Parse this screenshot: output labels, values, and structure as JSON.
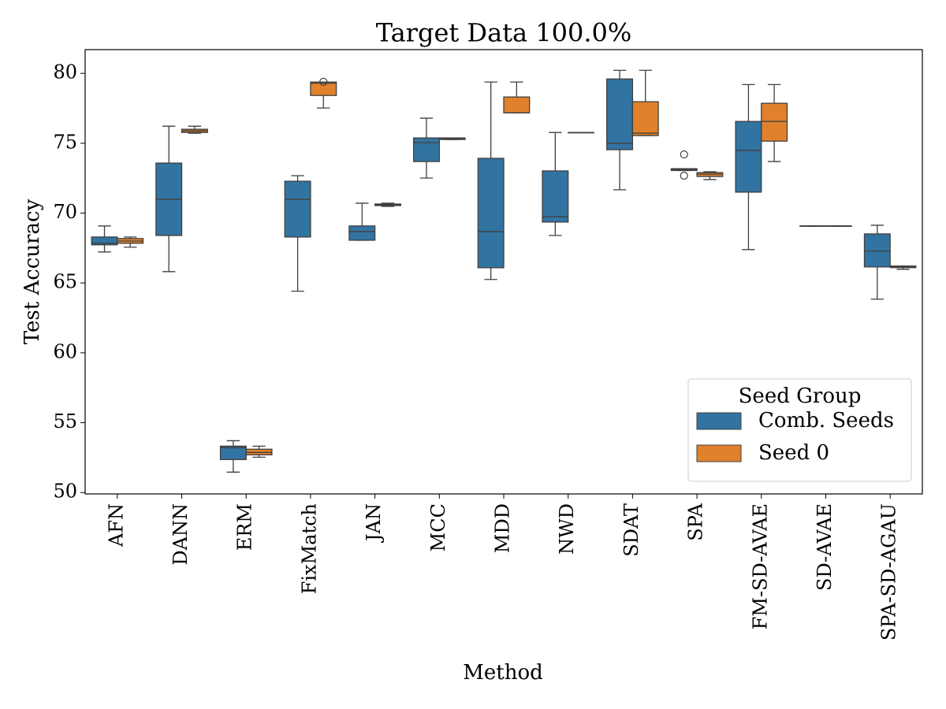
{
  "chart_data": {
    "type": "box",
    "title": "Target Data 100.0%",
    "x_label": "Method",
    "y_label": "Test Accuracy",
    "categories": [
      "AFN",
      "DANN",
      "ERM",
      "FixMatch",
      "JAN",
      "MCC",
      "MDD",
      "NWD",
      "SDAT",
      "SPA",
      "FM-SD-AVAE",
      "SD-AVAE",
      "SPA-SD-AGAU"
    ],
    "ylim": [
      49.9,
      81.7
    ],
    "yticks": [
      50,
      55,
      60,
      65,
      70,
      75,
      80
    ],
    "legend": {
      "title": "Seed Group",
      "loc": "lower right"
    },
    "series": [
      {
        "name": "Comb. Seeds",
        "color": "#3274a1",
        "values": [
          {
            "min": 67.22,
            "q1": 67.73,
            "median": 67.84,
            "q3": 68.29,
            "max": 69.08,
            "outliers": []
          },
          {
            "min": 65.81,
            "q1": 68.4,
            "median": 70.99,
            "q3": 73.58,
            "max": 76.22,
            "outliers": []
          },
          {
            "min": 51.46,
            "q1": 52.36,
            "median": 53.21,
            "q3": 53.32,
            "max": 53.71,
            "outliers": []
          },
          {
            "min": 64.41,
            "q1": 68.29,
            "median": 70.99,
            "q3": 72.28,
            "max": 72.68,
            "outliers": []
          },
          {
            "min": 68.06,
            "q1": 68.06,
            "median": 68.68,
            "q3": 69.08,
            "max": 70.71,
            "outliers": []
          },
          {
            "min": 72.51,
            "q1": 73.69,
            "median": 75.04,
            "q3": 75.38,
            "max": 76.79,
            "outliers": []
          },
          {
            "min": 65.25,
            "q1": 66.09,
            "median": 68.68,
            "q3": 73.92,
            "max": 79.38,
            "outliers": []
          },
          {
            "min": 68.4,
            "q1": 69.36,
            "median": 69.75,
            "q3": 73.02,
            "max": 75.77,
            "outliers": []
          },
          {
            "min": 71.67,
            "q1": 74.54,
            "median": 75.0,
            "q3": 79.6,
            "max": 80.22,
            "outliers": []
          },
          {
            "min": 73.05,
            "q1": 73.05,
            "median": 73.13,
            "q3": 73.18,
            "max": 73.18,
            "outliers": [
              74.2,
              72.68
            ]
          },
          {
            "min": 67.39,
            "q1": 71.5,
            "median": 74.48,
            "q3": 76.56,
            "max": 79.2,
            "outliers": []
          },
          {
            "min": 69.08,
            "q1": 69.08,
            "median": 69.08,
            "q3": 69.08,
            "max": 69.08,
            "outliers": []
          },
          {
            "min": 63.84,
            "q1": 66.15,
            "median": 67.28,
            "q3": 68.51,
            "max": 69.13,
            "outliers": []
          }
        ]
      },
      {
        "name": "Seed 0",
        "color": "#e1812c",
        "values": [
          {
            "min": 67.56,
            "q1": 67.84,
            "median": 68.0,
            "q3": 68.18,
            "max": 68.29,
            "outliers": []
          },
          {
            "min": 75.72,
            "q1": 75.77,
            "median": 75.89,
            "q3": 76.0,
            "max": 76.22,
            "outliers": []
          },
          {
            "min": 52.53,
            "q1": 52.7,
            "median": 52.87,
            "q3": 53.1,
            "max": 53.32,
            "outliers": []
          },
          {
            "min": 77.52,
            "q1": 78.42,
            "median": 79.3,
            "q3": 79.38,
            "max": 79.38,
            "outliers": [
              79.4
            ]
          },
          {
            "min": 70.48,
            "q1": 70.54,
            "median": 70.6,
            "q3": 70.65,
            "max": 70.71,
            "outliers": []
          },
          {
            "min": 75.27,
            "q1": 75.27,
            "median": 75.32,
            "q3": 75.38,
            "max": 75.38,
            "outliers": []
          },
          {
            "min": 77.18,
            "q1": 77.18,
            "median": 77.18,
            "q3": 78.31,
            "max": 79.38,
            "outliers": []
          },
          {
            "min": 75.77,
            "q1": 75.77,
            "median": 75.77,
            "q3": 75.77,
            "max": 75.77,
            "outliers": []
          },
          {
            "min": 75.55,
            "q1": 75.55,
            "median": 75.72,
            "q3": 77.97,
            "max": 80.22,
            "outliers": []
          },
          {
            "min": 72.4,
            "q1": 72.62,
            "median": 72.79,
            "q3": 72.9,
            "max": 72.96,
            "outliers": []
          },
          {
            "min": 73.69,
            "q1": 75.15,
            "median": 76.56,
            "q3": 77.86,
            "max": 79.2,
            "outliers": []
          },
          {
            "min": 69.08,
            "q1": 69.08,
            "median": 69.08,
            "q3": 69.08,
            "max": 69.08,
            "outliers": []
          },
          {
            "min": 65.98,
            "q1": 66.1,
            "median": 66.15,
            "q3": 66.21,
            "max": 66.21,
            "outliers": []
          }
        ]
      }
    ]
  }
}
